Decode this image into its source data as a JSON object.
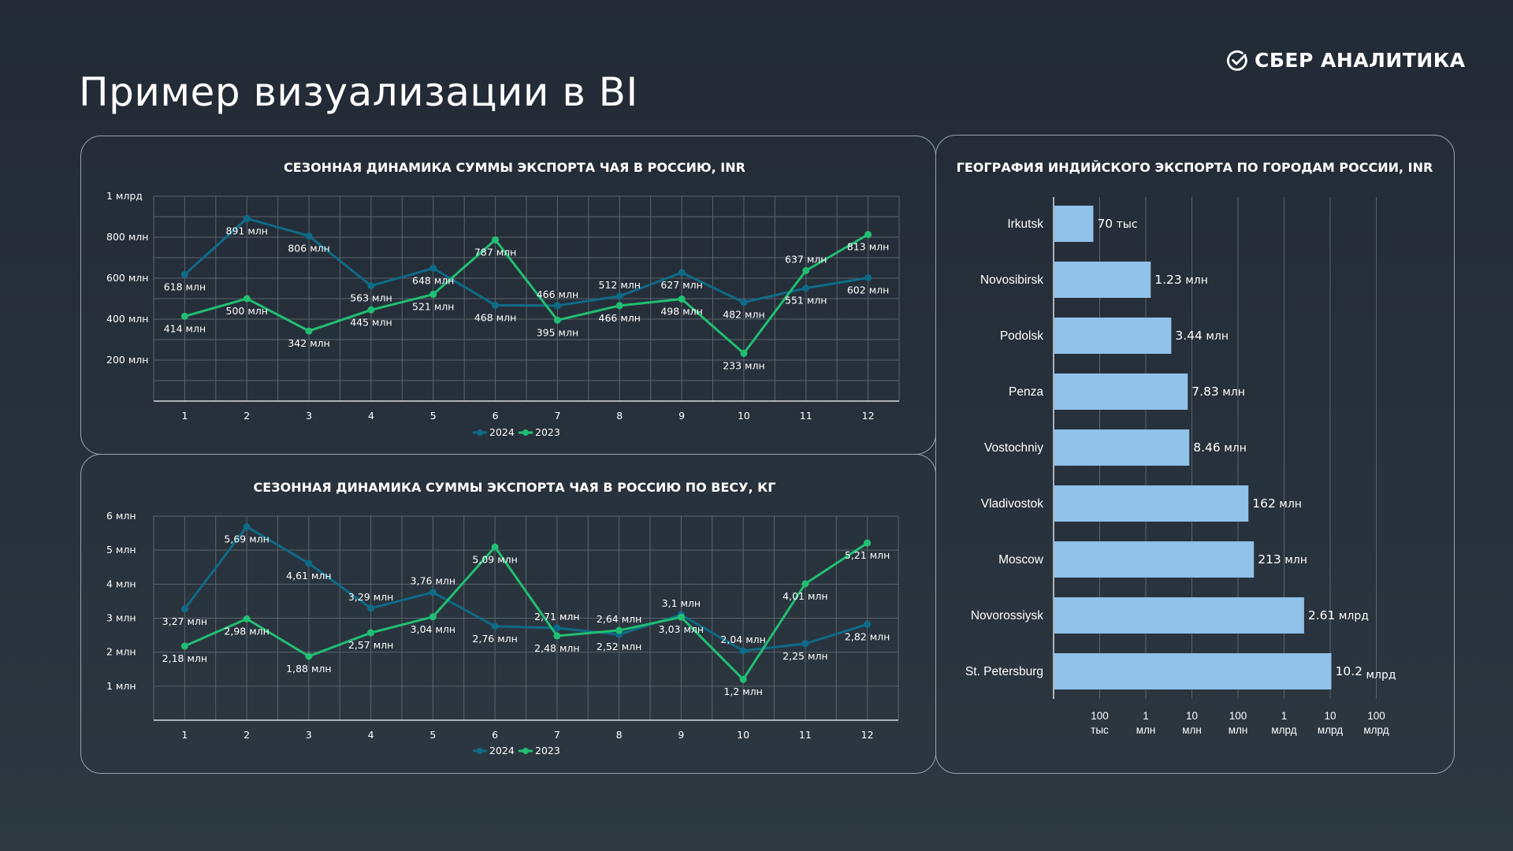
{
  "page": {
    "title": "Пример визуализации в BI",
    "logo_text": "СБЕР АНАЛИТИКА",
    "logo_icon": "sber-check-icon"
  },
  "colors": {
    "series_2024": "#0e6b87",
    "series_2023": "#21bf73",
    "bars": "#90c2ea",
    "grid": "#5a646d",
    "panel_border": "#9aa3ab"
  },
  "chart_data": [
    {
      "type": "line",
      "title": "СЕЗОННАЯ ДИНАМИКА СУММЫ ЭКСПОРТА ЧАЯ В РОССИЮ, INR",
      "xlabel": "",
      "ylabel": "",
      "categories": [
        "1",
        "2",
        "3",
        "4",
        "5",
        "6",
        "7",
        "8",
        "9",
        "10",
        "11",
        "12"
      ],
      "ylim": [
        0,
        1000000000
      ],
      "yticks": [
        {
          "value": 1000000000,
          "label": "1 млрд"
        },
        {
          "value": 800000000,
          "label": "800 млн"
        },
        {
          "value": 600000000,
          "label": "600 млн"
        },
        {
          "value": 400000000,
          "label": "400 млн"
        },
        {
          "value": 200000000,
          "label": "200 млн"
        }
      ],
      "grid": true,
      "legend": "bottom-center",
      "series": [
        {
          "name": "2024",
          "values": [
            618000000,
            891000000,
            806000000,
            563000000,
            648000000,
            468000000,
            466000000,
            512000000,
            627000000,
            482000000,
            551000000,
            602000000
          ],
          "labels": [
            "618 млн",
            "891 млн",
            "806 млн",
            "563 млн",
            "648 млн",
            "468 млн",
            "466 млн",
            "512 млн",
            "627 млн",
            "482 млн",
            "551 млн",
            "602 млн"
          ],
          "label_pos": [
            "below",
            "below",
            "below",
            "below",
            "below",
            "below",
            "above",
            "above",
            "below",
            "below",
            "below",
            "below"
          ]
        },
        {
          "name": "2023",
          "values": [
            414000000,
            500000000,
            342000000,
            445000000,
            521000000,
            787000000,
            395000000,
            466000000,
            498000000,
            233000000,
            637000000,
            813000000
          ],
          "labels": [
            "414 млн",
            "500 млн",
            "342 млн",
            "445 млн",
            "521 млн",
            "787 млн",
            "395 млн",
            "466 млн",
            "498 млн",
            "233 млн",
            "637 млн",
            "813 млн"
          ],
          "label_pos": [
            "below",
            "below",
            "below",
            "below",
            "below",
            "below",
            "below",
            "below",
            "below",
            "below",
            "above",
            "below"
          ]
        }
      ]
    },
    {
      "type": "line",
      "title": "СЕЗОННАЯ ДИНАМИКА СУММЫ ЭКСПОРТА ЧАЯ В РОССИЮ ПО ВЕСУ, КГ",
      "xlabel": "",
      "ylabel": "",
      "categories": [
        "1",
        "2",
        "3",
        "4",
        "5",
        "6",
        "7",
        "8",
        "9",
        "10",
        "11",
        "12"
      ],
      "ylim": [
        0,
        6000000
      ],
      "yticks": [
        {
          "value": 6000000,
          "label": "6 млн"
        },
        {
          "value": 5000000,
          "label": "5 млн"
        },
        {
          "value": 4000000,
          "label": "4 млн"
        },
        {
          "value": 3000000,
          "label": "3 млн"
        },
        {
          "value": 2000000,
          "label": "2 млн"
        },
        {
          "value": 1000000,
          "label": "1 млн"
        }
      ],
      "grid": true,
      "legend": "bottom-center",
      "series": [
        {
          "name": "2024",
          "values": [
            3270000,
            5690000,
            4610000,
            3290000,
            3760000,
            2760000,
            2710000,
            2520000,
            3100000,
            2040000,
            2250000,
            2820000
          ],
          "labels": [
            "3,27 млн",
            "5,69 млн",
            "4,61 млн",
            "3,29 млн",
            "3,76 млн",
            "2,76 млн",
            "2,71 млн",
            "2,52 млн",
            "3,1 млн",
            "2,04 млн",
            "2,25 млн",
            "2,82 млн"
          ],
          "label_pos": [
            "below",
            "below",
            "below",
            "above",
            "above",
            "below",
            "above",
            "below",
            "above",
            "above",
            "below",
            "below"
          ]
        },
        {
          "name": "2023",
          "values": [
            2180000,
            2980000,
            1880000,
            2570000,
            3040000,
            5090000,
            2480000,
            2640000,
            3030000,
            1200000,
            4010000,
            5210000
          ],
          "labels": [
            "2,18 млн",
            "2,98 млн",
            "1,88 млн",
            "2,57 млн",
            "3,04 млн",
            "5,09 млн",
            "2,48 млн",
            "2,64 млн",
            "3,03 млн",
            "1,2 млн",
            "4,01 млн",
            "5,21 млн"
          ],
          "label_pos": [
            "below",
            "below",
            "below",
            "below",
            "below",
            "below",
            "below",
            "above",
            "below",
            "below",
            "below",
            "below"
          ]
        }
      ]
    },
    {
      "type": "bar",
      "orientation": "horizontal",
      "scale": "log",
      "title": "ГЕОГРАФИЯ ИНДИЙСКОГО ЭКСПОРТА ПО ГОРОДАМ РОССИИ, INR",
      "xlabel": "",
      "ylabel": "",
      "categories": [
        "Irkutsk",
        "Novosibirsk",
        "Podolsk",
        "Penza",
        "Vostochniy",
        "Vladivostok",
        "Moscow",
        "Novorossiysk",
        "St. Petersburg"
      ],
      "values": [
        70000,
        1230000,
        3440000,
        7830000,
        8460000,
        162000000,
        213000000,
        2610000000,
        10200000000
      ],
      "value_labels": [
        {
          "num": "70",
          "unit": "тыс"
        },
        {
          "num": "1.23",
          "unit": "млн"
        },
        {
          "num": "3.44",
          "unit": "млн"
        },
        {
          "num": "7.83",
          "unit": "млн"
        },
        {
          "num": "8.46",
          "unit": "млн"
        },
        {
          "num": "162",
          "unit": "млн"
        },
        {
          "num": "213",
          "unit": "млн"
        },
        {
          "num": "2.61",
          "unit": "млрд"
        },
        {
          "num": "10.2",
          "unit": "млрд"
        }
      ],
      "xlim": [
        10000,
        1000000000000
      ],
      "xticks": [
        {
          "value": 100000,
          "line1": "100",
          "line2": "тыс"
        },
        {
          "value": 1000000,
          "line1": "1",
          "line2": "млн"
        },
        {
          "value": 10000000,
          "line1": "10",
          "line2": "млн"
        },
        {
          "value": 100000000,
          "line1": "100",
          "line2": "млн"
        },
        {
          "value": 1000000000,
          "line1": "1",
          "line2": "млрд"
        },
        {
          "value": 10000000000,
          "line1": "10",
          "line2": "млрд"
        },
        {
          "value": 100000000000,
          "line1": "100",
          "line2": "млрд"
        }
      ],
      "grid": true
    }
  ]
}
